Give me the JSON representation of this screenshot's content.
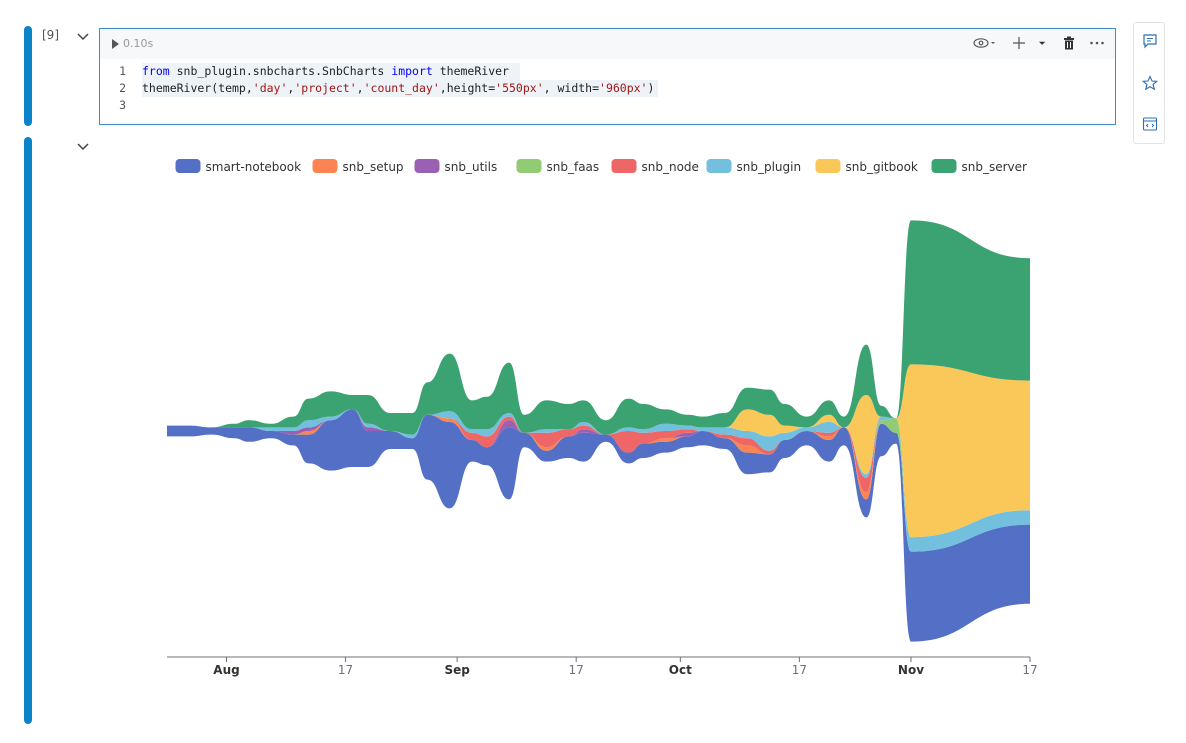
{
  "cell": {
    "execution_count": "[9]",
    "run_time": "0.10s",
    "code_lines": [
      {
        "num": "1",
        "tokens": [
          {
            "t": "from",
            "c": "kw"
          },
          {
            "t": " snb_plugin.snbcharts.SnbCharts ",
            "c": "plain"
          },
          {
            "t": "import",
            "c": "kw"
          },
          {
            "t": " themeRiver ",
            "c": "plain"
          }
        ]
      },
      {
        "num": "2",
        "tokens": [
          {
            "t": "themeRiver(temp,",
            "c": "plain"
          },
          {
            "t": "'day'",
            "c": "str"
          },
          {
            "t": ",",
            "c": "plain"
          },
          {
            "t": "'project'",
            "c": "str"
          },
          {
            "t": ",",
            "c": "plain"
          },
          {
            "t": "'count_day'",
            "c": "str"
          },
          {
            "t": ",height=",
            "c": "plain"
          },
          {
            "t": "'550px'",
            "c": "str"
          },
          {
            "t": ", width=",
            "c": "plain"
          },
          {
            "t": "'960px'",
            "c": "str"
          },
          {
            "t": ")",
            "c": "plain"
          }
        ]
      },
      {
        "num": "3",
        "tokens": []
      }
    ]
  },
  "toolbar_icons": [
    "eye-icon",
    "caret-down-icon",
    "plus-icon",
    "caret-down-icon",
    "trash-icon",
    "more-icon"
  ],
  "side_icons": [
    "comment-icon",
    "star-icon",
    "code-icon"
  ],
  "chart_data": {
    "type": "area",
    "legend_position": "top-center",
    "x_tick_labels": [
      {
        "label": "Aug",
        "date": "2022-08-01",
        "bold": true
      },
      {
        "label": "17",
        "date": "2022-08-17",
        "bold": false
      },
      {
        "label": "Sep",
        "date": "2022-09-01",
        "bold": true
      },
      {
        "label": "17",
        "date": "2022-09-17",
        "bold": false
      },
      {
        "label": "Oct",
        "date": "2022-10-01",
        "bold": true
      },
      {
        "label": "17",
        "date": "2022-10-17",
        "bold": false
      },
      {
        "label": "Nov",
        "date": "2022-11-01",
        "bold": true
      },
      {
        "label": "17",
        "date": "2022-11-17",
        "bold": false
      }
    ],
    "x_range": [
      "2022-07-24",
      "2022-11-17"
    ],
    "x": [
      "2022-07-24",
      "2022-07-27",
      "2022-07-30",
      "2022-08-02",
      "2022-08-04",
      "2022-08-07",
      "2022-08-10",
      "2022-08-12",
      "2022-08-15",
      "2022-08-18",
      "2022-08-20",
      "2022-08-23",
      "2022-08-26",
      "2022-08-28",
      "2022-08-31",
      "2022-09-03",
      "2022-09-05",
      "2022-09-08",
      "2022-09-10",
      "2022-09-13",
      "2022-09-16",
      "2022-09-18",
      "2022-09-21",
      "2022-09-24",
      "2022-09-26",
      "2022-09-29",
      "2022-10-02",
      "2022-10-04",
      "2022-10-07",
      "2022-10-10",
      "2022-10-13",
      "2022-10-15",
      "2022-10-18",
      "2022-10-21",
      "2022-10-23",
      "2022-10-26",
      "2022-10-28",
      "2022-10-30",
      "2022-11-01",
      "2022-11-17"
    ],
    "series": [
      {
        "name": "smart-notebook",
        "color": "#5470c6",
        "values": [
          3,
          3,
          2,
          3,
          4,
          2,
          3,
          8,
          14,
          16,
          10,
          5,
          3,
          18,
          24,
          6,
          5,
          20,
          4,
          3,
          6,
          8,
          2,
          3,
          4,
          3,
          3,
          4,
          3,
          6,
          5,
          5,
          4,
          6,
          5,
          5,
          9,
          3,
          25,
          22
        ]
      },
      {
        "name": "snb_setup",
        "color": "#fc8452",
        "values": [
          0,
          0,
          0,
          0,
          0,
          0,
          0,
          1,
          0,
          0,
          0,
          0,
          0,
          0,
          1,
          0,
          0,
          0,
          0,
          1,
          0,
          0,
          0,
          0,
          0,
          1,
          0,
          0,
          0,
          2,
          0,
          0,
          0,
          1,
          0,
          2,
          0,
          0,
          0,
          0
        ]
      },
      {
        "name": "snb_utils",
        "color": "#9a60b4",
        "values": [
          0,
          0,
          0,
          0,
          0,
          0,
          1,
          1,
          0,
          0,
          1,
          0,
          0,
          0,
          0,
          0,
          0,
          2,
          0,
          0,
          0,
          1,
          0,
          0,
          0,
          0,
          1,
          0,
          0,
          0,
          0,
          0,
          0,
          0,
          0,
          0,
          0,
          0,
          0,
          0
        ]
      },
      {
        "name": "snb_faas",
        "color": "#91cc75",
        "values": [
          0,
          0,
          0,
          0,
          0,
          0,
          0,
          0,
          0,
          0,
          0,
          0,
          0,
          0,
          0,
          0,
          0,
          0,
          0,
          0,
          0,
          0,
          0,
          0,
          0,
          0,
          0,
          0,
          0,
          0,
          0,
          0,
          0,
          0,
          0,
          0,
          1,
          4,
          0,
          0
        ]
      },
      {
        "name": "snb_node",
        "color": "#ee6666",
        "values": [
          0,
          0,
          0,
          0,
          0,
          0,
          0,
          0,
          0,
          0,
          0,
          0,
          0,
          0,
          0,
          2,
          3,
          1,
          0,
          4,
          2,
          1,
          0,
          6,
          3,
          2,
          1,
          0,
          1,
          2,
          1,
          0,
          0,
          1,
          0,
          4,
          0,
          0,
          0,
          0
        ]
      },
      {
        "name": "snb_plugin",
        "color": "#73c0de",
        "values": [
          0,
          0,
          0,
          0,
          0,
          1,
          1,
          2,
          1,
          0,
          1,
          0,
          1,
          0,
          2,
          1,
          2,
          1,
          0,
          1,
          0,
          1,
          0,
          1,
          1,
          2,
          1,
          1,
          2,
          2,
          4,
          2,
          1,
          3,
          0,
          1,
          1,
          0,
          4,
          4
        ]
      },
      {
        "name": "snb_gitbook",
        "color": "#fac858",
        "values": [
          0,
          0,
          0,
          0,
          0,
          0,
          0,
          0,
          0,
          0,
          0,
          0,
          0,
          0,
          0,
          0,
          0,
          0,
          0,
          0,
          0,
          0,
          0,
          0,
          0,
          0,
          0,
          0,
          0,
          6,
          6,
          2,
          0,
          2,
          0,
          22,
          0,
          0,
          48,
          36
        ]
      },
      {
        "name": "snb_server",
        "color": "#3ba272",
        "values": [
          0,
          0,
          0,
          1,
          2,
          1,
          3,
          6,
          7,
          4,
          8,
          5,
          6,
          9,
          16,
          8,
          9,
          14,
          5,
          8,
          7,
          6,
          4,
          8,
          7,
          4,
          3,
          3,
          4,
          6,
          7,
          6,
          3,
          4,
          3,
          14,
          3,
          0,
          40,
          34
        ]
      }
    ]
  }
}
